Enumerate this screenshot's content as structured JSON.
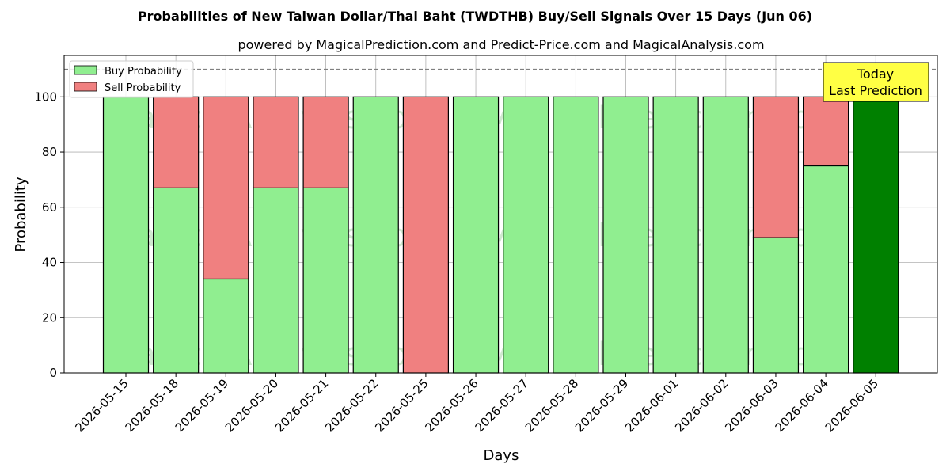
{
  "title": "Probabilities of New Taiwan Dollar/Thai Baht (TWDTHB) Buy/Sell Signals Over 15 Days (Jun 06)",
  "subtitle": "powered by MagicalPrediction.com and Predict-Price.com and MagicalAnalysis.com",
  "watermarks": [
    "MagicalAnalysis.com",
    "MagicalPrediction.com"
  ],
  "annotation": {
    "line1": "Today",
    "line2": "Last Prediction"
  },
  "colors": {
    "buy": "#90ee90",
    "sell": "#f08080",
    "today_buy": "#008000",
    "annotation_bg": "#ffff44",
    "reference_line": "#808080"
  },
  "chart_data": {
    "type": "bar",
    "stacked": true,
    "title": "Probabilities of New Taiwan Dollar/Thai Baht (TWDTHB) Buy/Sell Signals Over 15 Days (Jun 06)",
    "xlabel": "Days",
    "ylabel": "Probability",
    "ylim": [
      0,
      115
    ],
    "yticks": [
      0,
      20,
      40,
      60,
      80,
      100
    ],
    "reference_line": 110,
    "grid": true,
    "legend_position": "top-left",
    "categories": [
      "2026-05-15",
      "2026-05-18",
      "2026-05-19",
      "2026-05-20",
      "2026-05-21",
      "2026-05-22",
      "2026-05-25",
      "2026-05-26",
      "2026-05-27",
      "2026-05-28",
      "2026-05-29",
      "2026-06-01",
      "2026-06-02",
      "2026-06-03",
      "2026-06-04",
      "2026-06-05"
    ],
    "series": [
      {
        "name": "Buy Probability",
        "values": [
          100,
          67,
          34,
          67,
          67,
          100,
          0,
          100,
          100,
          100,
          100,
          100,
          100,
          49,
          75,
          100
        ]
      },
      {
        "name": "Sell Probability",
        "values": [
          0,
          33,
          66,
          33,
          33,
          0,
          100,
          0,
          0,
          0,
          0,
          0,
          0,
          51,
          25,
          0
        ]
      }
    ]
  }
}
